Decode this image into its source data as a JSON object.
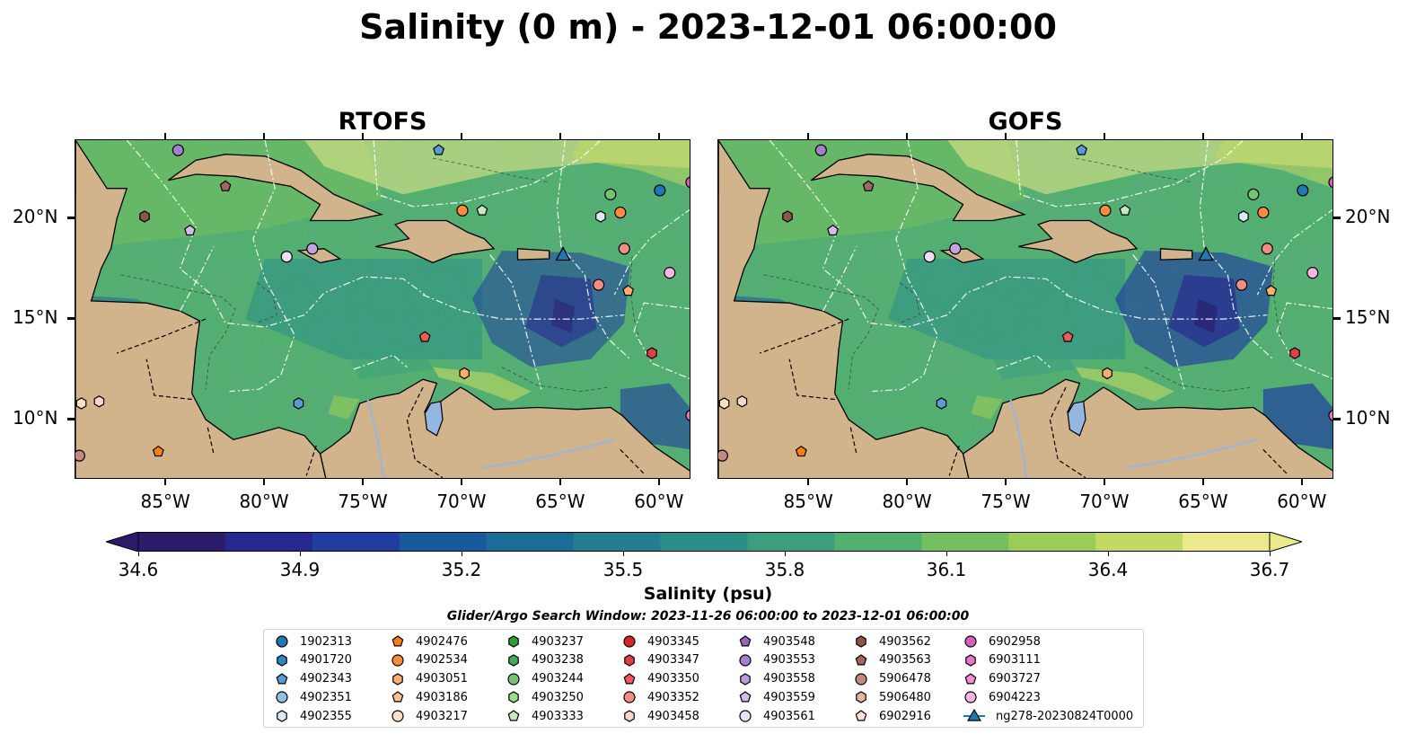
{
  "title": "Salinity (0 m) - 2023-12-01 06:00:00",
  "panels": [
    {
      "title": "RTOFS"
    },
    {
      "title": "GOFS"
    }
  ],
  "axes": {
    "x_ticks": [
      "85°W",
      "80°W",
      "75°W",
      "70°W",
      "65°W",
      "60°W"
    ],
    "y_ticks": [
      "20°N",
      "15°N",
      "10°N"
    ],
    "lon_range": [
      -89.6,
      -58.4
    ],
    "lat_range": [
      7.0,
      23.9
    ]
  },
  "colorbar": {
    "label": "Salinity (psu)",
    "ticks": [
      "34.6",
      "34.9",
      "35.2",
      "35.5",
      "35.8",
      "36.1",
      "36.4",
      "36.7"
    ],
    "range": [
      34.6,
      36.7
    ],
    "colors": [
      "#2c1b6b",
      "#27288f",
      "#1f3ea0",
      "#185a9c",
      "#1b6c96",
      "#237e8f",
      "#2c8e88",
      "#3a9f7f",
      "#52b06f",
      "#75bf5f",
      "#9bcc58",
      "#c3d963",
      "#ece98c"
    ]
  },
  "colors": {
    "land": "#d2b48c",
    "deep_fresh": "#2b1a6a",
    "lake": "#94b6e0"
  },
  "search_window": "Glider/Argo Search Window: 2023-11-26 06:00:00 to 2023-12-01 06:00:00",
  "legend": [
    [
      {
        "id": "1902313",
        "marker": "circle",
        "color": "#1f77b4"
      },
      {
        "id": "4901720",
        "marker": "hexagon",
        "color": "#2e86c1"
      },
      {
        "id": "4902343",
        "marker": "pentagon",
        "color": "#5b9bd5"
      },
      {
        "id": "4902351",
        "marker": "circle",
        "color": "#8fbfe7"
      },
      {
        "id": "4902355",
        "marker": "hexagon",
        "color": "#dbeaf7"
      }
    ],
    [
      {
        "id": "4902476",
        "marker": "pentagon",
        "color": "#ff7f0e"
      },
      {
        "id": "4902534",
        "marker": "circle",
        "color": "#fd8d3c"
      },
      {
        "id": "4903051",
        "marker": "hexagon",
        "color": "#fdae6b"
      },
      {
        "id": "4903186",
        "marker": "pentagon",
        "color": "#fdc38d"
      },
      {
        "id": "4903217",
        "marker": "circle",
        "color": "#fee0c2"
      }
    ],
    [
      {
        "id": "4903237",
        "marker": "hexagon",
        "color": "#2ca02c"
      },
      {
        "id": "4903238",
        "marker": "hexagon",
        "color": "#41ab5d"
      },
      {
        "id": "4903244",
        "marker": "circle",
        "color": "#74c476"
      },
      {
        "id": "4903250",
        "marker": "hexagon",
        "color": "#98df8a"
      },
      {
        "id": "4903333",
        "marker": "pentagon",
        "color": "#c7e9c0"
      }
    ],
    [
      {
        "id": "4903345",
        "marker": "circle",
        "color": "#d62728"
      },
      {
        "id": "4903347",
        "marker": "hexagon",
        "color": "#e0403f"
      },
      {
        "id": "4903350",
        "marker": "pentagon",
        "color": "#ef5a58"
      },
      {
        "id": "4903352",
        "marker": "circle",
        "color": "#f08c84"
      },
      {
        "id": "4903458",
        "marker": "hexagon",
        "color": "#fcd5cf"
      }
    ],
    [
      {
        "id": "4903548",
        "marker": "pentagon",
        "color": "#9467bd"
      },
      {
        "id": "4903553",
        "marker": "circle",
        "color": "#a47fce"
      },
      {
        "id": "4903558",
        "marker": "hexagon",
        "color": "#b99bdb"
      },
      {
        "id": "4903559",
        "marker": "pentagon",
        "color": "#d2bde8"
      },
      {
        "id": "4903561",
        "marker": "circle",
        "color": "#ebe0f4"
      }
    ],
    [
      {
        "id": "4903562",
        "marker": "hexagon",
        "color": "#8c564b"
      },
      {
        "id": "4903563",
        "marker": "pentagon",
        "color": "#a0685c"
      },
      {
        "id": "5906478",
        "marker": "circle",
        "color": "#c08a7e"
      },
      {
        "id": "5906480",
        "marker": "hexagon",
        "color": "#e8b4a6"
      },
      {
        "id": "6902916",
        "marker": "pentagon",
        "color": "#fde0d6"
      }
    ],
    [
      {
        "id": "6902958",
        "marker": "circle",
        "color": "#d65fbf"
      },
      {
        "id": "6903111",
        "marker": "hexagon",
        "color": "#e377c2"
      },
      {
        "id": "6903727",
        "marker": "pentagon",
        "color": "#f091d4"
      },
      {
        "id": "6904223",
        "marker": "circle",
        "color": "#f7b6e2"
      },
      {
        "id": "ng278-20230824T0000",
        "marker": "triangle-line",
        "color": "#1f77b4"
      }
    ]
  ],
  "floats": [
    {
      "lon": -84.4,
      "lat": 23.4,
      "marker": "circle",
      "color": "#a47fce"
    },
    {
      "lon": -71.2,
      "lat": 23.4,
      "marker": "pentagon",
      "color": "#5b9bd5"
    },
    {
      "lon": -82.0,
      "lat": 21.6,
      "marker": "pentagon",
      "color": "#a0685c"
    },
    {
      "lon": -86.1,
      "lat": 20.1,
      "marker": "hexagon",
      "color": "#8c564b"
    },
    {
      "lon": -83.8,
      "lat": 19.4,
      "marker": "pentagon",
      "color": "#d2bde8"
    },
    {
      "lon": -78.9,
      "lat": 18.1,
      "marker": "circle",
      "color": "#ebe0f4"
    },
    {
      "lon": -77.6,
      "lat": 18.5,
      "marker": "circle",
      "color": "#c8a2e0"
    },
    {
      "lon": -70.0,
      "lat": 20.4,
      "marker": "circle",
      "color": "#fd8d3c"
    },
    {
      "lon": -69.0,
      "lat": 20.4,
      "marker": "pentagon",
      "color": "#c7e9c0"
    },
    {
      "lon": -62.5,
      "lat": 21.2,
      "marker": "circle",
      "color": "#74c476"
    },
    {
      "lon": -62.0,
      "lat": 20.3,
      "marker": "circle",
      "color": "#fd8d3c"
    },
    {
      "lon": -63.0,
      "lat": 20.1,
      "marker": "hexagon",
      "color": "#dbeaf7"
    },
    {
      "lon": -60.0,
      "lat": 21.4,
      "marker": "circle",
      "color": "#1f77b4"
    },
    {
      "lon": -61.8,
      "lat": 18.5,
      "marker": "circle",
      "color": "#f08c84"
    },
    {
      "lon": -59.5,
      "lat": 17.3,
      "marker": "circle",
      "color": "#f7b6e2"
    },
    {
      "lon": -63.1,
      "lat": 16.7,
      "marker": "circle",
      "color": "#f08c84"
    },
    {
      "lon": -61.6,
      "lat": 16.4,
      "marker": "pentagon",
      "color": "#fdae6b"
    },
    {
      "lon": -71.9,
      "lat": 14.1,
      "marker": "pentagon",
      "color": "#ef5a58"
    },
    {
      "lon": -60.4,
      "lat": 13.3,
      "marker": "hexagon",
      "color": "#e0403f"
    },
    {
      "lon": -78.3,
      "lat": 10.8,
      "marker": "hexagon",
      "color": "#5b9bd5"
    },
    {
      "lon": -69.9,
      "lat": 12.3,
      "marker": "hexagon",
      "color": "#fdae6b"
    },
    {
      "lon": -89.3,
      "lat": 10.8,
      "marker": "hexagon",
      "color": "#fee0c2"
    },
    {
      "lon": -88.4,
      "lat": 10.9,
      "marker": "hexagon",
      "color": "#fcd5cf"
    },
    {
      "lon": -85.4,
      "lat": 8.4,
      "marker": "pentagon",
      "color": "#ff7f0e"
    },
    {
      "lon": -89.4,
      "lat": 8.2,
      "marker": "circle",
      "color": "#c08a7e"
    },
    {
      "lon": -58.4,
      "lat": 10.2,
      "marker": "circle",
      "color": "#e377c2"
    },
    {
      "lon": -58.4,
      "lat": 21.8,
      "marker": "circle",
      "color": "#d65fbf"
    }
  ],
  "glider": {
    "lon": -64.9,
    "lat": 18.2,
    "color": "#1f77b4"
  }
}
